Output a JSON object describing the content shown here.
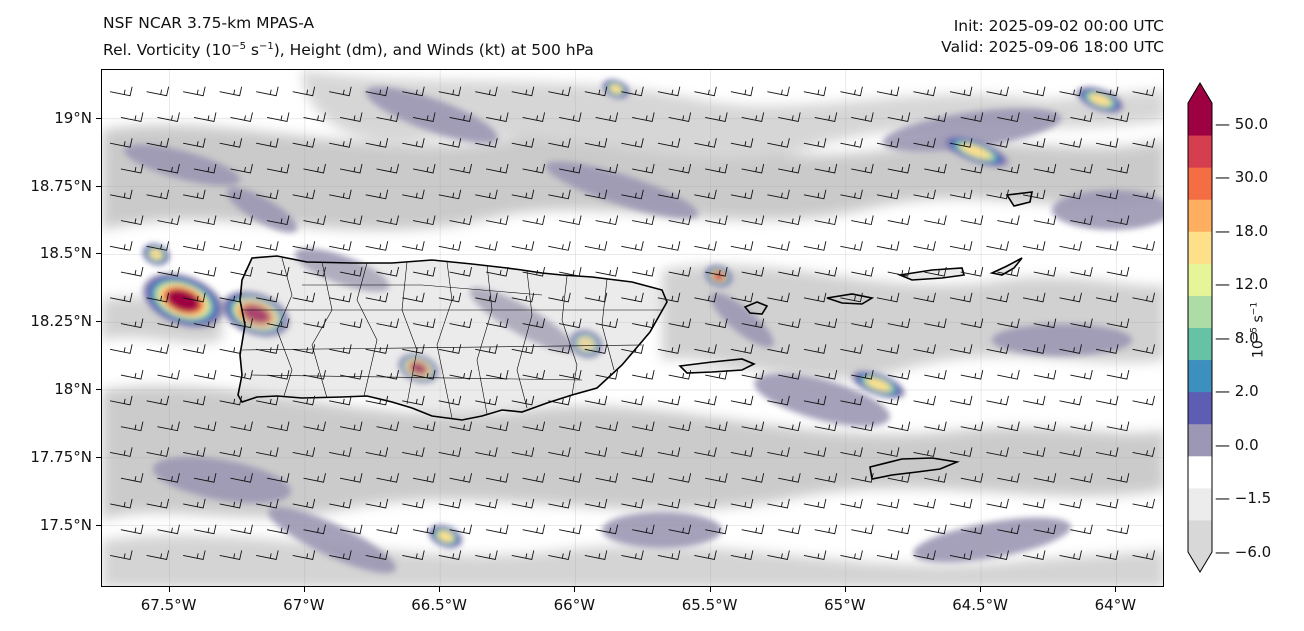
{
  "header": {
    "model": "NSF NCAR 3.75-km MPAS-A",
    "field_prefix": "Rel. Vorticity (10",
    "field_exp": "−5",
    "field_mid": " s",
    "field_exp2": "−1",
    "field_suffix": "), Height (dm), and Winds (kt) at 500 hPa",
    "init": "Init: 2025-09-02 00:00 UTC",
    "valid": "Valid: 2025-09-06 18:00 UTC"
  },
  "map": {
    "lon_range": [
      -67.75,
      -63.82
    ],
    "lat_range": [
      17.27,
      19.18
    ],
    "lat_ticks": [
      {
        "value": 19.0,
        "label": "19°N"
      },
      {
        "value": 18.75,
        "label": "18.75°N"
      },
      {
        "value": 18.5,
        "label": "18.5°N"
      },
      {
        "value": 18.25,
        "label": "18.25°N"
      },
      {
        "value": 18.0,
        "label": "18°N"
      },
      {
        "value": 17.75,
        "label": "17.75°N"
      },
      {
        "value": 17.5,
        "label": "17.5°N"
      }
    ],
    "lon_ticks": [
      {
        "value": -67.5,
        "label": "67.5°W"
      },
      {
        "value": -67.0,
        "label": "67°W"
      },
      {
        "value": -66.5,
        "label": "66.5°W"
      },
      {
        "value": -66.0,
        "label": "66°W"
      },
      {
        "value": -65.5,
        "label": "65.5°W"
      },
      {
        "value": -65.0,
        "label": "65°W"
      },
      {
        "value": -64.5,
        "label": "64.5°W"
      },
      {
        "value": -64.0,
        "label": "64°W"
      }
    ],
    "vorticity_blobs": [
      {
        "lon": -67.45,
        "lat": 18.33,
        "rx": 0.12,
        "ry": 0.07,
        "value": 50
      },
      {
        "lon": -67.18,
        "lat": 18.28,
        "rx": 0.1,
        "ry": 0.06,
        "value": 50
      },
      {
        "lon": -66.58,
        "lat": 18.08,
        "rx": 0.06,
        "ry": 0.04,
        "value": 50
      },
      {
        "lon": -65.47,
        "lat": 18.42,
        "rx": 0.04,
        "ry": 0.03,
        "value": 40
      },
      {
        "lon": -64.52,
        "lat": 18.88,
        "rx": 0.1,
        "ry": 0.03,
        "value": 25
      },
      {
        "lon": -64.06,
        "lat": 19.07,
        "rx": 0.07,
        "ry": 0.03,
        "value": 18
      },
      {
        "lon": -65.85,
        "lat": 19.11,
        "rx": 0.04,
        "ry": 0.025,
        "value": 18
      },
      {
        "lon": -64.88,
        "lat": 18.02,
        "rx": 0.08,
        "ry": 0.03,
        "value": 18
      },
      {
        "lon": -65.96,
        "lat": 18.17,
        "rx": 0.05,
        "ry": 0.04,
        "value": 18
      },
      {
        "lon": -66.48,
        "lat": 17.46,
        "rx": 0.05,
        "ry": 0.03,
        "value": 18
      },
      {
        "lon": -67.55,
        "lat": 18.5,
        "rx": 0.04,
        "ry": 0.03,
        "value": 25
      }
    ],
    "wind_barb_grid": {
      "lon_start": -67.72,
      "lon_step": 0.135,
      "lat_start": 19.1,
      "lat_step": -0.095
    }
  },
  "colorbar": {
    "ticks": [
      "50.0",
      "30.0",
      "18.0",
      "12.0",
      "8.0",
      "2.0",
      "0.0",
      "−1.5",
      "−6.0"
    ],
    "label_base": "10",
    "label_exp": "−5",
    "label_unit": " s",
    "label_exp2": "−1",
    "colors": [
      "#d8d8d8",
      "#ececec",
      "#ffffff",
      "#9b97b4",
      "#5e5db4",
      "#3d8fbf",
      "#66c2a5",
      "#abdda4",
      "#e6f598",
      "#fee08b",
      "#fdae61",
      "#f46d43",
      "#d53e4f",
      "#9e0142"
    ]
  }
}
